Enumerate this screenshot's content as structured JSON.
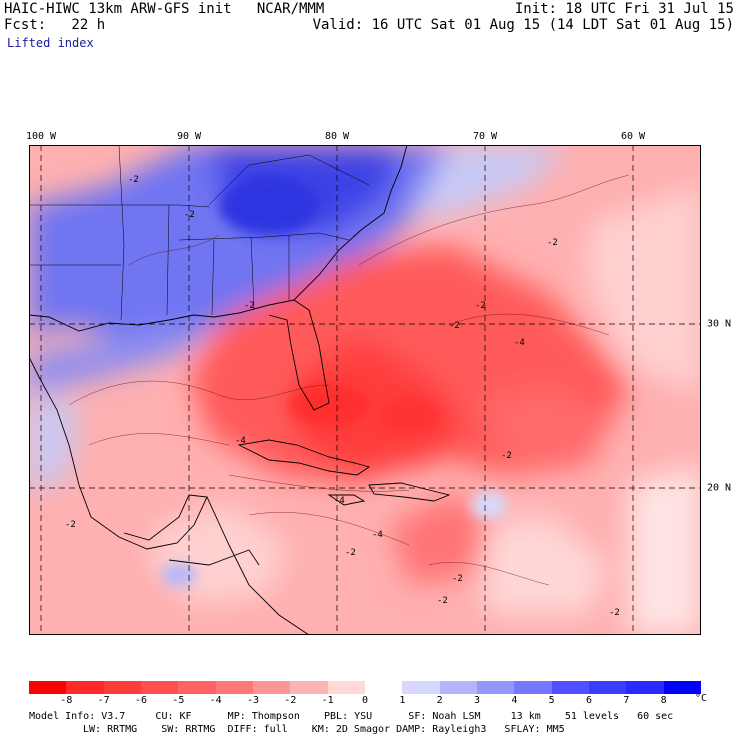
{
  "header": {
    "model": "HAIC-HIWC 13km ARW-GFS init   NCAR/MMM",
    "init": "Init: 18 UTC Fri 31 Jul 15",
    "fcst": "Fcst:   22 h",
    "valid": "Valid: 16 UTC Sat 01 Aug 15 (14 LDT Sat 01 Aug 15)",
    "field": "Lifted index"
  },
  "map": {
    "lon_labels": [
      "100 W",
      "90 W",
      "80 W",
      "70 W",
      "60 W"
    ],
    "lat_labels": [
      "30 N",
      "20 N"
    ],
    "contour_labels": [
      "-2",
      "-2",
      "-2",
      "-2",
      "-4",
      "-4",
      "-2",
      "-2",
      "-2",
      "-2",
      "-4",
      "-2",
      "-4",
      "-2",
      "-2",
      "-2"
    ]
  },
  "colorbar": {
    "levels": [
      "-8",
      "-7",
      "-6",
      "-5",
      "-4",
      "-3",
      "-2",
      "-1",
      "0",
      "1",
      "2",
      "3",
      "4",
      "5",
      "6",
      "7",
      "8"
    ],
    "unit": "°C",
    "colors": [
      "#ff0000",
      "#ff2a2a",
      "#ff3c3c",
      "#ff5050",
      "#ff6464",
      "#ff7878",
      "#ff9696",
      "#ffb4b4",
      "#ffd8d8",
      "#ffffff",
      "#d8d8ff",
      "#b4b4ff",
      "#9696ff",
      "#7878ff",
      "#5050ff",
      "#3c3cff",
      "#2a2aff",
      "#0000ff"
    ]
  },
  "footer": {
    "line1": "Model Info: V3.7     CU: KF      MP: Thompson    PBL: YSU      SF: Noah LSM     13 km    51 levels   60 sec",
    "line2": "LW: RRTMG    SW: RRTMG  DIFF: full    KM: 2D Smagor DAMP: Rayleigh3   SFLAY: MM5"
  }
}
